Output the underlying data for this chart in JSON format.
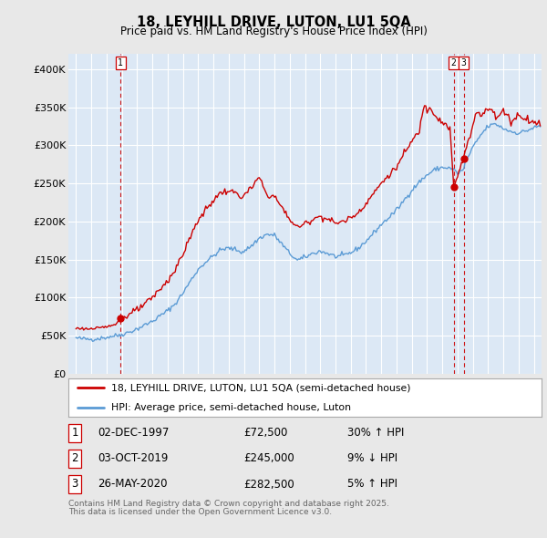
{
  "title": "18, LEYHILL DRIVE, LUTON, LU1 5QA",
  "subtitle": "Price paid vs. HM Land Registry's House Price Index (HPI)",
  "legend_line1": "18, LEYHILL DRIVE, LUTON, LU1 5QA (semi-detached house)",
  "legend_line2": "HPI: Average price, semi-detached house, Luton",
  "transactions": [
    {
      "label": "1",
      "date": "02-DEC-1997",
      "price": 72500,
      "pct": "30%",
      "dir": "↑",
      "x": 1997.917
    },
    {
      "label": "2",
      "date": "03-OCT-2019",
      "price": 245000,
      "pct": "9%",
      "dir": "↓",
      "x": 2019.75
    },
    {
      "label": "3",
      "date": "26-MAY-2020",
      "price": 282500,
      "pct": "5%",
      "dir": "↑",
      "x": 2020.4
    }
  ],
  "footnote1": "Contains HM Land Registry data © Crown copyright and database right 2025.",
  "footnote2": "This data is licensed under the Open Government Licence v3.0.",
  "hpi_color": "#5b9bd5",
  "price_color": "#cc0000",
  "vline_color": "#cc0000",
  "background_color": "#e8e8e8",
  "plot_bg_color": "#dce8f5",
  "ylim": [
    0,
    420000
  ],
  "yticks": [
    0,
    50000,
    100000,
    150000,
    200000,
    250000,
    300000,
    350000,
    400000
  ],
  "ytick_labels": [
    "£0",
    "£50K",
    "£100K",
    "£150K",
    "£200K",
    "£250K",
    "£300K",
    "£350K",
    "£400K"
  ],
  "xlim": [
    1994.5,
    2025.5
  ],
  "xticks": [
    1995,
    1996,
    1997,
    1998,
    1999,
    2000,
    2001,
    2002,
    2003,
    2004,
    2005,
    2006,
    2007,
    2008,
    2009,
    2010,
    2011,
    2012,
    2013,
    2014,
    2015,
    2016,
    2017,
    2018,
    2019,
    2020,
    2021,
    2022,
    2023,
    2024,
    2025
  ]
}
